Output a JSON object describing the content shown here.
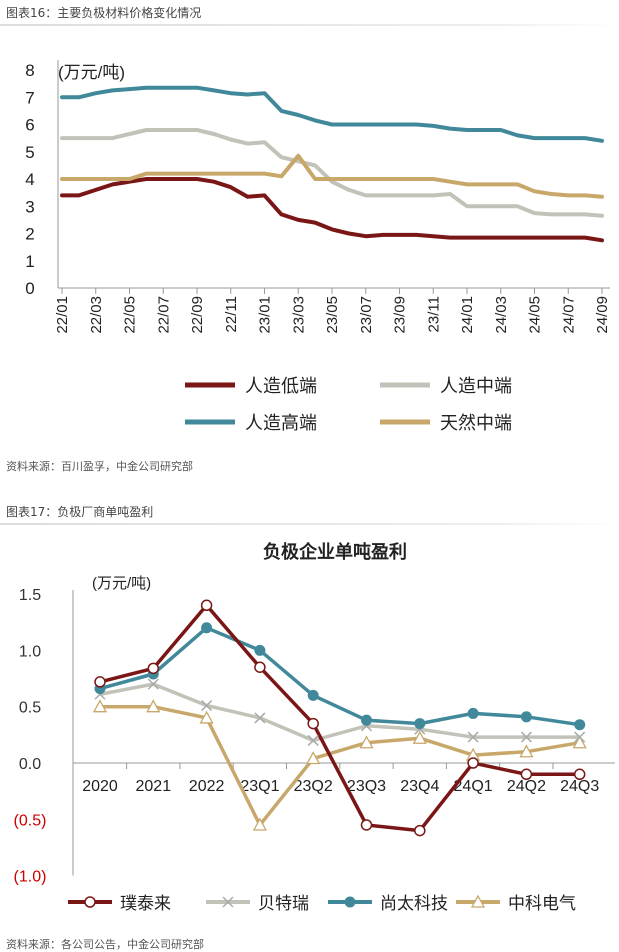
{
  "figure16": {
    "caption": "图表16：主要负极材料价格变化情况",
    "source": "资料来源：百川盈孚，中金公司研究部"
  },
  "figure17": {
    "caption": "图表17：负极厂商单吨盈利",
    "source": "资料来源：各公司公告，中金公司研究部"
  },
  "chart_data": [
    {
      "type": "line",
      "title": "",
      "ylabel": "(万元/吨)",
      "ylim": [
        0,
        8
      ],
      "yticks": [
        "0",
        "1",
        "2",
        "3",
        "4",
        "5",
        "6",
        "7",
        "8"
      ],
      "x": [
        "22/01",
        "22/02",
        "22/03",
        "22/04",
        "22/05",
        "22/06",
        "22/07",
        "22/08",
        "22/09",
        "22/10",
        "22/11",
        "22/12",
        "23/01",
        "23/02",
        "23/03",
        "23/04",
        "23/05",
        "23/06",
        "23/07",
        "23/08",
        "23/09",
        "23/10",
        "23/11",
        "23/12",
        "24/01",
        "24/02",
        "24/03",
        "24/04",
        "24/05",
        "24/06",
        "24/07",
        "24/08",
        "24/09"
      ],
      "xticks": [
        "22/01",
        "22/03",
        "22/05",
        "22/07",
        "22/09",
        "22/11",
        "23/01",
        "23/03",
        "23/05",
        "23/07",
        "23/09",
        "23/11",
        "24/01",
        "24/03",
        "24/05",
        "24/07",
        "24/09"
      ],
      "grid": false,
      "legend": "bottom",
      "series": [
        {
          "name": "人造低端",
          "color": "#7a1616",
          "values": [
            3.4,
            3.4,
            3.6,
            3.8,
            3.9,
            4.0,
            4.0,
            4.0,
            4.0,
            3.9,
            3.7,
            3.35,
            3.4,
            2.7,
            2.5,
            2.4,
            2.15,
            2.0,
            1.9,
            1.95,
            1.95,
            1.95,
            1.9,
            1.85,
            1.85,
            1.85,
            1.85,
            1.85,
            1.85,
            1.85,
            1.85,
            1.85,
            1.75
          ]
        },
        {
          "name": "人造中端",
          "color": "#c2c2b8",
          "values": [
            5.5,
            5.5,
            5.5,
            5.5,
            5.65,
            5.8,
            5.8,
            5.8,
            5.8,
            5.65,
            5.45,
            5.3,
            5.35,
            4.8,
            4.65,
            4.5,
            3.9,
            3.6,
            3.4,
            3.4,
            3.4,
            3.4,
            3.4,
            3.45,
            3.0,
            3.0,
            3.0,
            3.0,
            2.75,
            2.7,
            2.7,
            2.7,
            2.65
          ]
        },
        {
          "name": "人造高端",
          "color": "#41899a",
          "values": [
            7.0,
            7.0,
            7.15,
            7.25,
            7.3,
            7.35,
            7.35,
            7.35,
            7.35,
            7.25,
            7.15,
            7.1,
            7.15,
            6.5,
            6.35,
            6.15,
            6.0,
            6.0,
            6.0,
            6.0,
            6.0,
            6.0,
            5.95,
            5.85,
            5.8,
            5.8,
            5.8,
            5.6,
            5.5,
            5.5,
            5.5,
            5.5,
            5.4
          ]
        },
        {
          "name": "天然中端",
          "color": "#c8a86a",
          "values": [
            4.0,
            4.0,
            4.0,
            4.0,
            4.0,
            4.2,
            4.2,
            4.2,
            4.2,
            4.2,
            4.2,
            4.2,
            4.2,
            4.1,
            4.85,
            4.0,
            4.0,
            4.0,
            4.0,
            4.0,
            4.0,
            4.0,
            4.0,
            3.9,
            3.8,
            3.8,
            3.8,
            3.8,
            3.55,
            3.45,
            3.4,
            3.4,
            3.35
          ]
        }
      ]
    },
    {
      "type": "line",
      "title": "负极企业单吨盈利",
      "ylabel": "(万元/吨)",
      "ylim": [
        -1.0,
        1.5
      ],
      "yticks": [
        {
          "v": 1.5,
          "label": "1.5",
          "color": "#333333"
        },
        {
          "v": 1.0,
          "label": "1.0",
          "color": "#333333"
        },
        {
          "v": 0.5,
          "label": "0.5",
          "color": "#333333"
        },
        {
          "v": 0.0,
          "label": "0.0",
          "color": "#333333"
        },
        {
          "v": -0.5,
          "label": "(0.5)",
          "color": "#cc0000"
        },
        {
          "v": -1.0,
          "label": "(1.0)",
          "color": "#cc0000"
        }
      ],
      "categories": [
        "2020",
        "2021",
        "2022",
        "23Q1",
        "23Q2",
        "23Q3",
        "23Q4",
        "24Q1",
        "24Q2",
        "24Q3"
      ],
      "grid": false,
      "legend": "bottom",
      "series": [
        {
          "name": "璞泰来",
          "color": "#7a1616",
          "marker": "circle-open",
          "values": [
            0.72,
            0.84,
            1.4,
            0.85,
            0.35,
            -0.55,
            -0.6,
            0.0,
            -0.1,
            -0.1
          ]
        },
        {
          "name": "贝特瑞",
          "color": "#c2c2b8",
          "marker": "x",
          "values": [
            0.61,
            0.7,
            0.51,
            0.4,
            0.2,
            0.33,
            0.3,
            0.23,
            0.23,
            0.23
          ]
        },
        {
          "name": "尚太科技",
          "color": "#41899a",
          "marker": "circle-filled",
          "values": [
            0.66,
            0.79,
            1.2,
            1.0,
            0.6,
            0.38,
            0.35,
            0.44,
            0.41,
            0.34
          ]
        },
        {
          "name": "中科电气",
          "color": "#c8a86a",
          "marker": "triangle-open",
          "values": [
            0.5,
            0.5,
            0.4,
            -0.55,
            0.04,
            0.18,
            0.22,
            0.07,
            0.1,
            0.18
          ]
        }
      ]
    }
  ]
}
